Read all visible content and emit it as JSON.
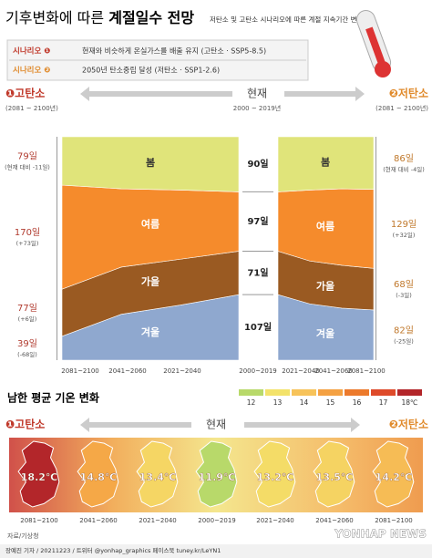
{
  "header": {
    "title_light": "기후변화에 따른",
    "title_bold": "계절일수 전망",
    "subtitle": "저탄소 및 고탄소 시나리오에 따른 계절 지속기간 변화"
  },
  "scenarios": [
    {
      "tag": "시나리오 ❶",
      "text": "현재와 비슷하게 온실가스를 배출 유지 (고탄소 · SSP5-8.5)"
    },
    {
      "tag": "시나리오 ❷",
      "text": "2050년 탄소중립 달성 (저탄소 · SSP1-2.6)"
    }
  ],
  "columns": {
    "high": {
      "label": "❶고탄소",
      "period": "(2081 ~ 2100년)"
    },
    "present": {
      "label": "현재",
      "period": "2000 ~ 2019년"
    },
    "low": {
      "label": "❷저탄소",
      "period": "(2081 ~ 2100년)"
    }
  },
  "chart_data": [
    {
      "type": "area",
      "stacked": true,
      "categories": [
        "2081~2100",
        "2041~2060",
        "2021~2040",
        "2000~2019"
      ],
      "ylim": [
        0,
        365
      ],
      "series": [
        {
          "name": "겨울",
          "color": "#8fa8cf",
          "values": [
            39,
            75,
            90,
            107
          ],
          "value_labels": [
            "39일",
            null,
            null,
            "107일"
          ],
          "change_label": "(-68일)"
        },
        {
          "name": "가을",
          "color": "#9a5a22",
          "values": [
            77,
            77,
            75,
            71
          ],
          "value_labels": [
            "77일",
            null,
            null,
            "71일"
          ],
          "change_label": "(+6일)"
        },
        {
          "name": "여름",
          "color": "#f58b2c",
          "values": [
            170,
            128,
            113,
            97
          ],
          "value_labels": [
            "170일",
            null,
            null,
            "97일"
          ],
          "change_label": "(+73일)"
        },
        {
          "name": "봄",
          "color": "#e0e47a",
          "values": [
            79,
            85,
            87,
            90
          ],
          "value_labels": [
            "79일",
            null,
            null,
            "90일"
          ],
          "change_label": "(현재 대비 -11일)"
        }
      ]
    },
    {
      "type": "area",
      "stacked": true,
      "categories": [
        "2021~2040",
        "2041~2060",
        "2081~2100"
      ],
      "ylim": [
        0,
        365
      ],
      "series": [
        {
          "name": "겨울",
          "color": "#8fa8cf",
          "values": [
            92,
            85,
            82
          ],
          "value_labels": [
            null,
            null,
            "82일"
          ],
          "change_label": "(-25일)"
        },
        {
          "name": "가을",
          "color": "#9a5a22",
          "values": [
            70,
            70,
            68
          ],
          "value_labels": [
            null,
            null,
            "68일"
          ],
          "change_label": "(-3일)"
        },
        {
          "name": "여름",
          "color": "#f58b2c",
          "values": [
            116,
            125,
            129
          ],
          "value_labels": [
            null,
            null,
            "129일"
          ],
          "change_label": "(+32일)"
        },
        {
          "name": "봄",
          "color": "#e0e47a",
          "values": [
            87,
            85,
            86
          ],
          "value_labels": [
            null,
            null,
            "86일"
          ],
          "change_label": "(현재 대비 -4일)"
        }
      ]
    },
    {
      "type": "map",
      "title": "남한 평균 기온 변화",
      "categories": [
        "2081~2100",
        "2041~2060",
        "2021~2040",
        "2000~2019",
        "2021~2040",
        "2041~2060",
        "2081~2100"
      ],
      "values": [
        18.2,
        14.8,
        13.4,
        11.9,
        13.2,
        13.5,
        14.2
      ],
      "value_labels": [
        "18.2℃",
        "14.8℃",
        "13.4℃",
        "11.9℃",
        "13.2℃",
        "13.5℃",
        "14.2℃"
      ],
      "legend_ticks": [
        12,
        13,
        14,
        15,
        16,
        17,
        {
          "value": 18,
          "label": "18℃"
        }
      ],
      "legend_colors": [
        "#b8d96a",
        "#f3e26a",
        "#f7c35a",
        "#f4a142",
        "#ec7a2c",
        "#de4a2a",
        "#b3262a"
      ]
    }
  ],
  "footer": {
    "source": "자료/기상청",
    "credit": "장예진 기자 / 20211223 / 트위터 @yonhap_graphics 페이스북 tuney.kr/LeYN1",
    "watermark": "YONHAP NEWS"
  }
}
